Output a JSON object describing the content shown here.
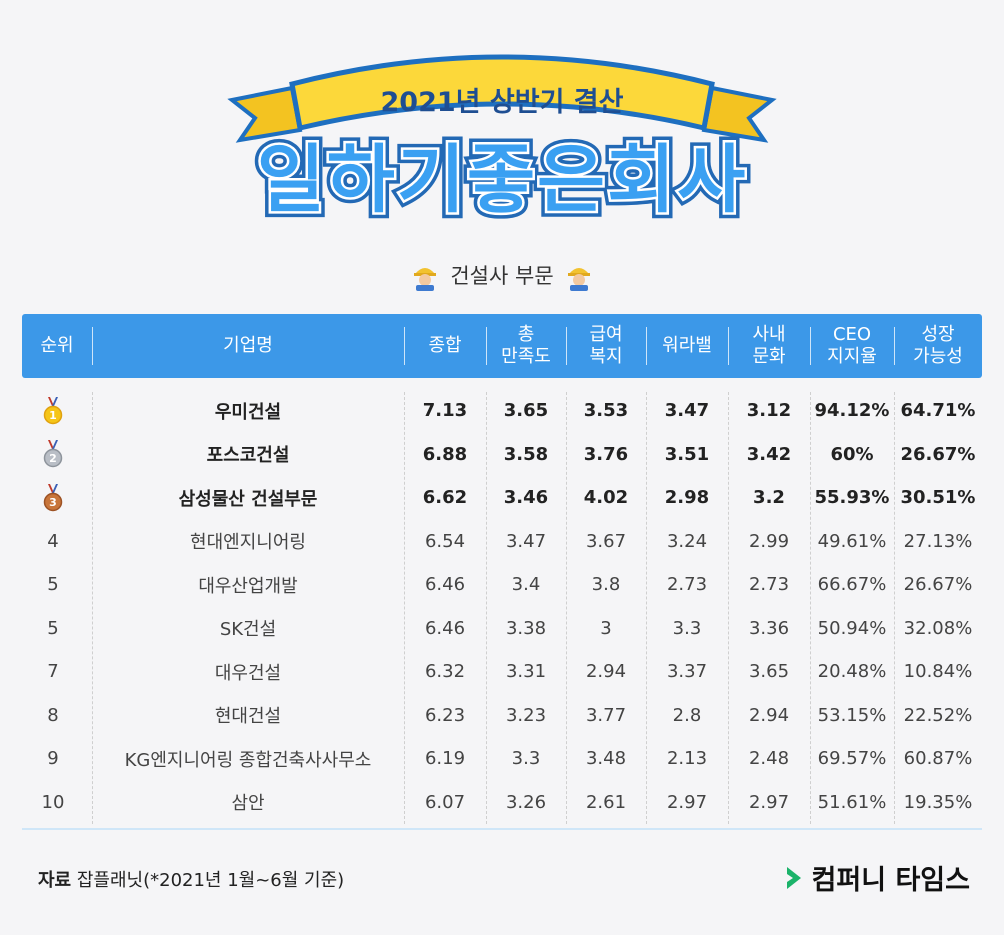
{
  "banner": {
    "subtitle": "2021년 상반기 결산",
    "title": "일하기좋은회사"
  },
  "section": {
    "title": "건설사 부문",
    "icon": "construction-worker-icon"
  },
  "table": {
    "headers": [
      {
        "line1": "순위",
        "line2": ""
      },
      {
        "line1": "기업명",
        "line2": ""
      },
      {
        "line1": "종합",
        "line2": ""
      },
      {
        "line1": "총",
        "line2": "만족도"
      },
      {
        "line1": "급여",
        "line2": "복지"
      },
      {
        "line1": "워라밸",
        "line2": ""
      },
      {
        "line1": "사내",
        "line2": "문화"
      },
      {
        "line1": "CEO",
        "line2": "지지율"
      },
      {
        "line1": "성장",
        "line2": "가능성"
      }
    ],
    "rows": [
      {
        "rank": "",
        "medal": "gold-medal-icon",
        "medal_num": "1",
        "company": "우미건설",
        "total": "7.13",
        "satisfaction": "3.65",
        "pay": "3.53",
        "wlb": "3.47",
        "culture": "3.12",
        "ceo": "94.12%",
        "growth": "64.71%"
      },
      {
        "rank": "",
        "medal": "silver-medal-icon",
        "medal_num": "2",
        "company": "포스코건설",
        "total": "6.88",
        "satisfaction": "3.58",
        "pay": "3.76",
        "wlb": "3.51",
        "culture": "3.42",
        "ceo": "60%",
        "growth": "26.67%"
      },
      {
        "rank": "",
        "medal": "bronze-medal-icon",
        "medal_num": "3",
        "company": "삼성물산 건설부문",
        "total": "6.62",
        "satisfaction": "3.46",
        "pay": "4.02",
        "wlb": "2.98",
        "culture": "3.2",
        "ceo": "55.93%",
        "growth": "30.51%"
      },
      {
        "rank": "4",
        "company": "현대엔지니어링",
        "total": "6.54",
        "satisfaction": "3.47",
        "pay": "3.67",
        "wlb": "3.24",
        "culture": "2.99",
        "ceo": "49.61%",
        "growth": "27.13%"
      },
      {
        "rank": "5",
        "company": "대우산업개발",
        "total": "6.46",
        "satisfaction": "3.4",
        "pay": "3.8",
        "wlb": "2.73",
        "culture": "2.73",
        "ceo": "66.67%",
        "growth": "26.67%"
      },
      {
        "rank": "5",
        "company": "SK건설",
        "total": "6.46",
        "satisfaction": "3.38",
        "pay": "3",
        "wlb": "3.3",
        "culture": "3.36",
        "ceo": "50.94%",
        "growth": "32.08%"
      },
      {
        "rank": "7",
        "company": "대우건설",
        "total": "6.32",
        "satisfaction": "3.31",
        "pay": "2.94",
        "wlb": "3.37",
        "culture": "3.65",
        "ceo": "20.48%",
        "growth": "10.84%"
      },
      {
        "rank": "8",
        "company": "현대건설",
        "total": "6.23",
        "satisfaction": "3.23",
        "pay": "3.77",
        "wlb": "2.8",
        "culture": "2.94",
        "ceo": "53.15%",
        "growth": "22.52%"
      },
      {
        "rank": "9",
        "company": "KG엔지니어링 종합건축사사무소",
        "total": "6.19",
        "satisfaction": "3.3",
        "pay": "3.48",
        "wlb": "2.13",
        "culture": "2.48",
        "ceo": "69.57%",
        "growth": "60.87%"
      },
      {
        "rank": "10",
        "company": "삼안",
        "total": "6.07",
        "satisfaction": "3.26",
        "pay": "2.61",
        "wlb": "2.97",
        "culture": "2.97",
        "ceo": "51.61%",
        "growth": "19.35%"
      }
    ]
  },
  "footer": {
    "source_label": "자료",
    "source_text": "잡플래닛(*2021년 1월~6월 기준)",
    "brand": "컴퍼니 타임스",
    "brand_icon": "chevron-right-icon"
  },
  "colors": {
    "header_blue": "#3c98e8",
    "ribbon_yellow": "#fcd83a",
    "title_blue": "#2b8ee6",
    "brand_green": "#1bb36a"
  }
}
